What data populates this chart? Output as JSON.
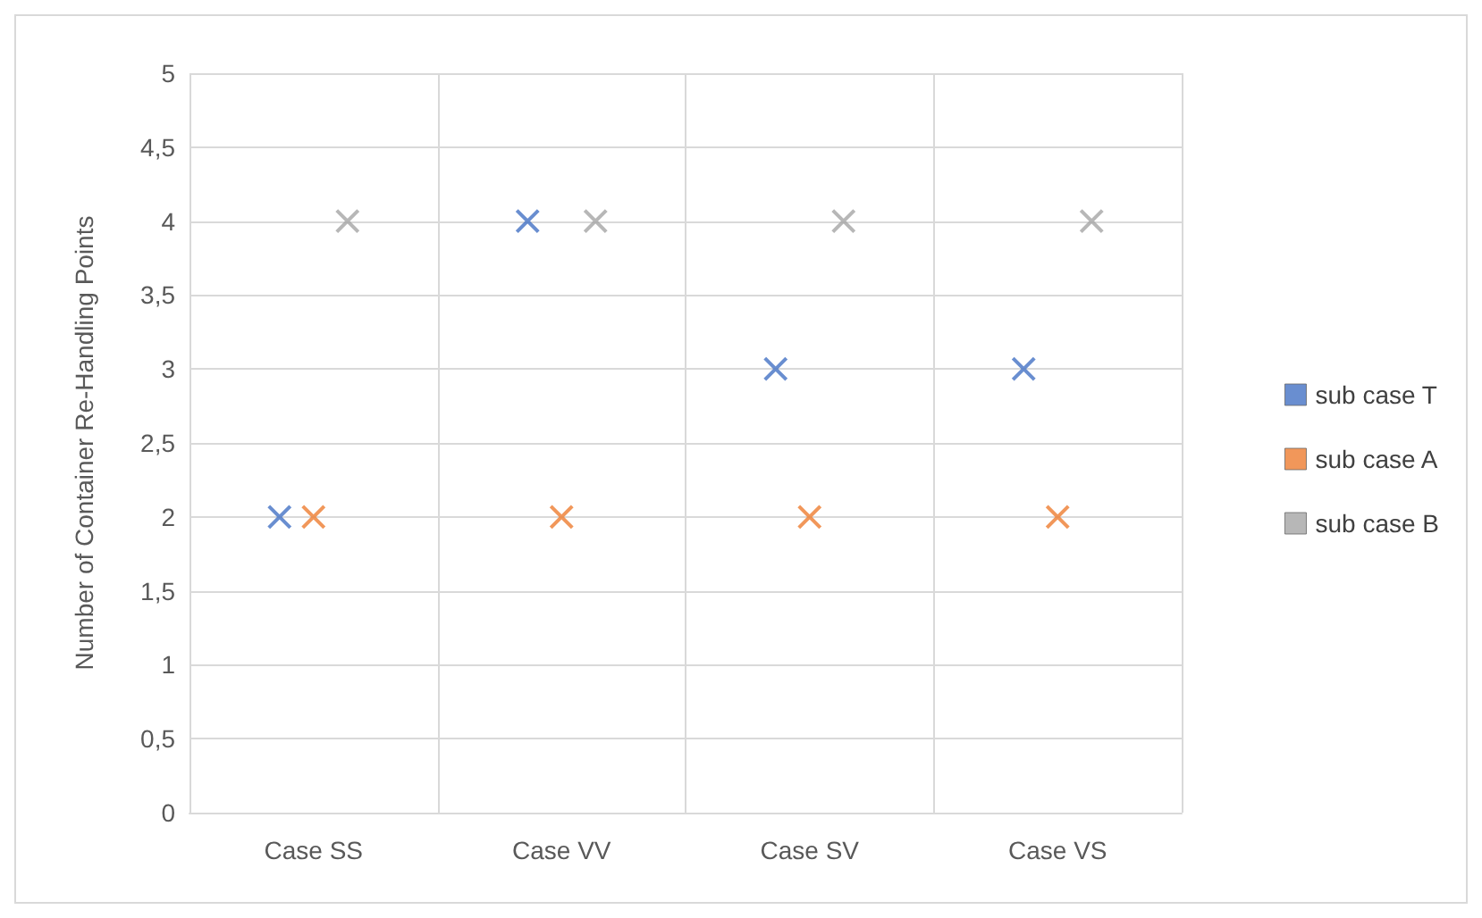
{
  "chart_data": {
    "type": "scatter",
    "ylabel": "Number of Container Re-Handling Points",
    "categories": [
      "Case SS",
      "Case VV",
      "Case SV",
      "Case VS"
    ],
    "series": [
      {
        "name": "sub case T",
        "color": "#4472c4",
        "values": [
          2,
          4,
          3,
          3
        ]
      },
      {
        "name": "sub case A",
        "color": "#ed7d31",
        "values": [
          2,
          2,
          2,
          2
        ]
      },
      {
        "name": "sub case B",
        "color": "#a5a5a5",
        "values": [
          4,
          4,
          4,
          4
        ]
      }
    ],
    "ylim": [
      0,
      5
    ],
    "yticks": [
      0,
      {
        "value": 0.5,
        "label": "0,5"
      },
      1,
      {
        "value": 1.5,
        "label": "1,5"
      },
      2,
      {
        "value": 2.5,
        "label": "2,5"
      },
      3,
      {
        "value": 3.5,
        "label": "3,5"
      },
      4,
      {
        "value": 4.5,
        "label": "4,5"
      },
      5
    ],
    "grid": true,
    "legend": "right",
    "marker": "cross"
  }
}
